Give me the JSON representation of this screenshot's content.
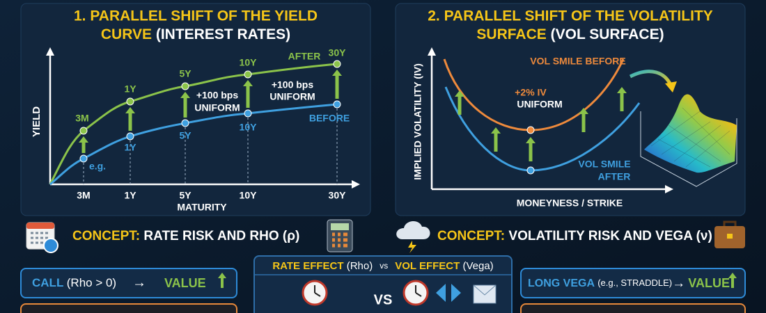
{
  "yield_panel": {
    "title_line1": "1. PARALLEL SHIFT OF THE YIELD",
    "title_line2": "CURVE",
    "title_suffix": "(INTEREST RATES)",
    "y_axis_label": "YIELD",
    "x_axis_label": "MATURITY",
    "x_ticks": [
      "3M",
      "1Y",
      "5Y",
      "10Y",
      "30Y"
    ],
    "after_point_labels": [
      "3M",
      "1Y",
      "5Y",
      "10Y",
      "30Y"
    ],
    "before_point_labels": [
      "e.g.",
      "1Y",
      "5Y",
      "10Y"
    ],
    "after_label": "AFTER",
    "before_label": "BEFORE",
    "shift_annotations": [
      {
        "amount": "+100 bps",
        "note": "UNIFORM"
      },
      {
        "amount": "+100 bps",
        "note": "UNIFORM"
      }
    ]
  },
  "vol_panel": {
    "title_line1": "2. PARALLEL SHIFT OF THE VOLATILITY",
    "title_line2": "SURFACE",
    "title_suffix": "(VOL SURFACE)",
    "y_axis_label": "IMPLIED VOLATILITY (IV)",
    "x_axis_label": "MONEYNESS / STRIKE",
    "before_label": "VOL SMILE BEFORE",
    "shift_amount": "+2% IV",
    "shift_note": "UNIFORM",
    "after_label_line1": "VOL SMILE",
    "after_label_line2": "AFTER"
  },
  "concepts": [
    {
      "label": "CONCEPT:",
      "text": "RATE RISK AND RHO (ρ)"
    },
    {
      "label": "CONCEPT:",
      "text": "VOLATILITY RISK AND VEGA (ν)"
    }
  ],
  "effects": {
    "left": {
      "name": "CALL",
      "condition": "(Rho > 0)",
      "arrow": "→",
      "result": "VALUE"
    },
    "right": {
      "name": "LONG VEGA",
      "condition": "(e.g., STRADDLE)",
      "arrow": "→",
      "result": "VALUE"
    }
  },
  "comparison": {
    "rate": "RATE EFFECT",
    "rate_greek": "(Rho)",
    "vs_small": "vs",
    "vol": "VOL EFFECT",
    "vol_greek": "(Vega)",
    "vs": "VS"
  }
}
